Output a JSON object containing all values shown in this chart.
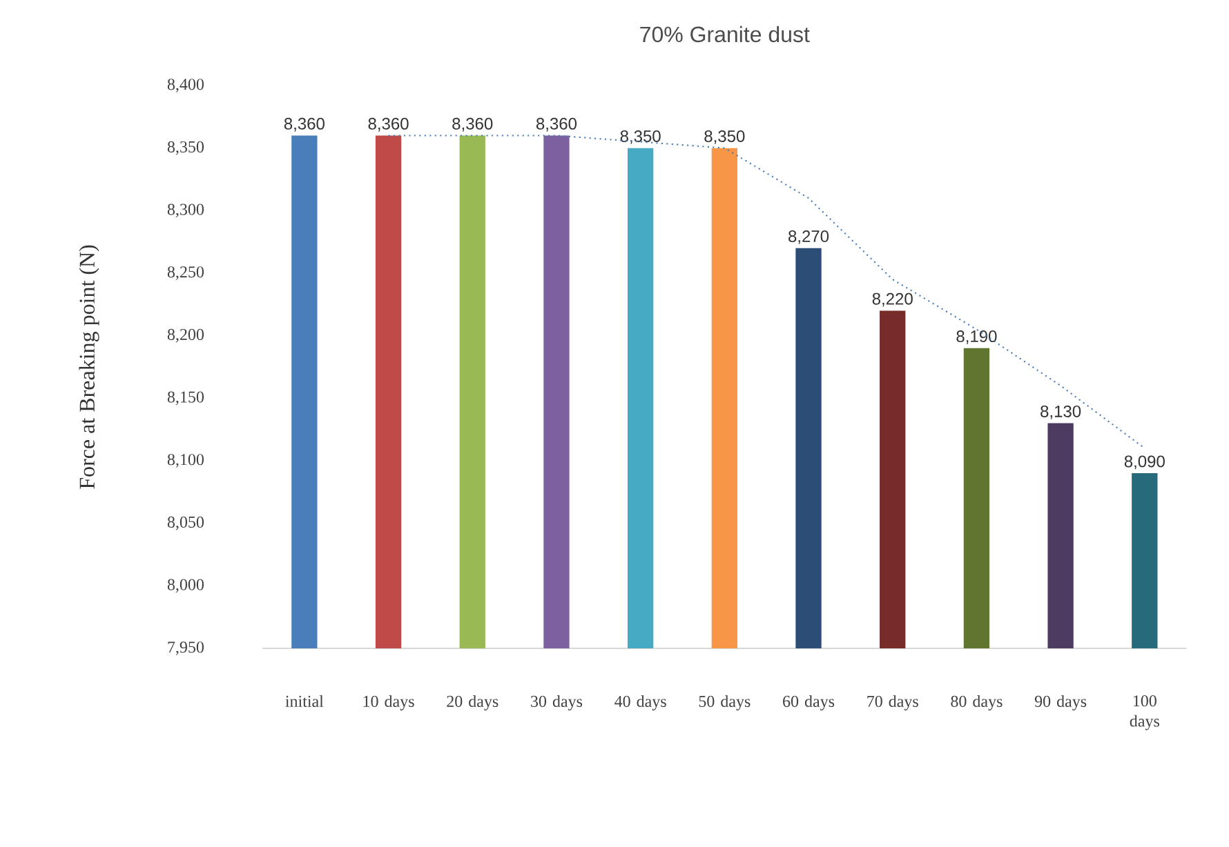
{
  "chart_data": {
    "type": "bar",
    "title": "70% Granite dust",
    "ylabel": "Force at Breaking point (N)",
    "categories": [
      "initial",
      "10 days",
      "20 days",
      "30 days",
      "40 days",
      "50 days",
      "60 days",
      "70 days",
      "80 days",
      "90 days",
      "100 days"
    ],
    "series": [
      {
        "colors": [
          "#4a7ebb",
          "#be4b48",
          "#98b954",
          "#7d60a0",
          "#46aac5",
          "#f79646",
          "#2c4d75",
          "#772c2a",
          "#5f7530",
          "#4d3b62",
          "#276a7c"
        ],
        "values": [
          8360,
          8360,
          8360,
          8360,
          8350,
          8350,
          8270,
          8220,
          8190,
          8130,
          8090
        ],
        "value_labels": [
          "8,360",
          "8,360",
          "8,360",
          "8,360",
          "8,350",
          "8,350",
          "8,270",
          "8,220",
          "8,190",
          "8,130",
          "8,090"
        ]
      },
      {
        "type": "line",
        "color": "#4a7ebb",
        "line_style": "dotted",
        "marker": "none",
        "values": [
          null,
          8360,
          8360,
          8360,
          8355,
          8350,
          8310,
          8245,
          8205,
          8160,
          8110
        ]
      }
    ],
    "ylim": [
      7950,
      8400
    ],
    "yticks": [
      {
        "value": 7950,
        "label": "7,950"
      },
      {
        "value": 8000,
        "label": "8,000"
      },
      {
        "value": 8050,
        "label": "8,050"
      },
      {
        "value": 8100,
        "label": "8,100"
      },
      {
        "value": 8150,
        "label": "8,150"
      },
      {
        "value": 8200,
        "label": "8,200"
      },
      {
        "value": 8250,
        "label": "8,250"
      },
      {
        "value": 8300,
        "label": "8,300"
      },
      {
        "value": 8350,
        "label": "8,350"
      },
      {
        "value": 8400,
        "label": "8,400"
      }
    ]
  }
}
